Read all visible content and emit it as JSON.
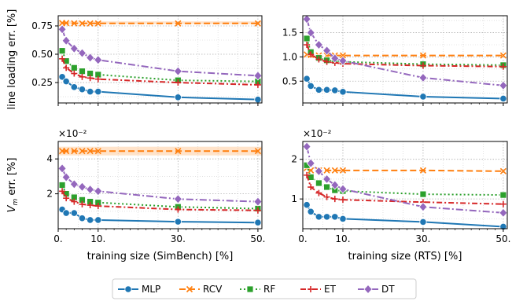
{
  "legend": [
    {
      "name": "MLP",
      "color": "#1f77b4",
      "marker": "circle",
      "dash": ""
    },
    {
      "name": "RCV",
      "color": "#ff7f0e",
      "marker": "x",
      "dash": "8 4"
    },
    {
      "name": "RF",
      "color": "#2ca02c",
      "marker": "square",
      "dash": "2 3"
    },
    {
      "name": "ET",
      "color": "#d62728",
      "marker": "plus",
      "dash": "7 3 2 3"
    },
    {
      "name": "DT",
      "color": "#9467bd",
      "marker": "diamond",
      "dash": "9 3 2 3"
    }
  ],
  "chart_data": [
    {
      "type": "line",
      "panel": "top-left",
      "ylabel": "line loading err. [%]",
      "xlabel": "",
      "xlim": [
        0,
        51
      ],
      "ylim": [
        0.07,
        0.84
      ],
      "xticks": [
        0,
        10,
        30,
        50
      ],
      "xtick_labels": [
        "",
        "",
        "",
        ""
      ],
      "yticks": [
        0.25,
        0.5,
        0.75
      ],
      "ytick_labels": [
        "0.25",
        "0.50",
        "0.75"
      ],
      "exponent": "",
      "band": {
        "series": "RCV",
        "y0": 0.765,
        "y1": 0.79
      },
      "x": [
        1,
        2,
        4,
        6,
        8,
        10,
        30,
        50
      ],
      "series": [
        {
          "name": "MLP",
          "values": [
            0.3,
            0.26,
            0.21,
            0.19,
            0.17,
            0.17,
            0.12,
            0.1
          ]
        },
        {
          "name": "RCV",
          "values": [
            0.775,
            0.775,
            0.773,
            0.772,
            0.772,
            0.772,
            0.772,
            0.772
          ]
        },
        {
          "name": "RF",
          "values": [
            0.53,
            0.44,
            0.38,
            0.35,
            0.33,
            0.32,
            0.27,
            0.26
          ]
        },
        {
          "name": "ET",
          "values": [
            0.46,
            0.38,
            0.33,
            0.3,
            0.29,
            0.28,
            0.25,
            0.23
          ]
        },
        {
          "name": "DT",
          "values": [
            0.72,
            0.62,
            0.55,
            0.51,
            0.47,
            0.45,
            0.35,
            0.31
          ]
        }
      ]
    },
    {
      "type": "line",
      "panel": "top-right",
      "ylabel": "",
      "xlabel": "",
      "xlim": [
        0,
        51
      ],
      "ylim": [
        0.05,
        1.85
      ],
      "xticks": [
        0,
        10,
        30,
        50
      ],
      "xtick_labels": [
        "",
        "",
        "",
        ""
      ],
      "yticks": [
        0.5,
        1.0,
        1.5
      ],
      "ytick_labels": [
        "0.5",
        "1.0",
        "1.5"
      ],
      "exponent": "",
      "band": null,
      "x": [
        1,
        2,
        4,
        6,
        8,
        10,
        30,
        50
      ],
      "series": [
        {
          "name": "MLP",
          "values": [
            0.55,
            0.4,
            0.32,
            0.32,
            0.31,
            0.28,
            0.18,
            0.14
          ]
        },
        {
          "name": "RCV",
          "values": [
            1.05,
            1.04,
            1.03,
            1.03,
            1.03,
            1.03,
            1.03,
            1.03
          ]
        },
        {
          "name": "RF",
          "values": [
            1.38,
            1.1,
            0.98,
            0.93,
            0.92,
            0.9,
            0.85,
            0.83
          ]
        },
        {
          "name": "ET",
          "values": [
            1.25,
            1.05,
            0.95,
            0.9,
            0.88,
            0.86,
            0.82,
            0.8
          ]
        },
        {
          "name": "DT",
          "values": [
            1.78,
            1.5,
            1.25,
            1.13,
            0.97,
            0.92,
            0.57,
            0.41
          ]
        }
      ]
    },
    {
      "type": "line",
      "panel": "bottom-left",
      "ylabel": "Vm err. [%]",
      "xlabel": "training size (SimBench) [%]",
      "xlim": [
        0,
        51
      ],
      "ylim": [
        0.0,
        0.05
      ],
      "xticks": [
        0,
        10,
        30,
        50
      ],
      "xtick_labels": [
        "0.",
        "10.",
        "30.",
        "50."
      ],
      "yticks": [
        0.02,
        0.04
      ],
      "ytick_labels": [
        "2",
        "4"
      ],
      "exponent": "×10⁻²",
      "band": {
        "series": "RCV",
        "y0": 0.042,
        "y1": 0.047
      },
      "x": [
        1,
        2,
        4,
        6,
        8,
        10,
        30,
        50
      ],
      "series": [
        {
          "name": "MLP",
          "values": [
            0.011,
            0.009,
            0.009,
            0.006,
            0.005,
            0.005,
            0.004,
            0.0035
          ]
        },
        {
          "name": "RCV",
          "values": [
            0.0445,
            0.0445,
            0.0445,
            0.0445,
            0.0445,
            0.0445,
            0.0445,
            0.0445
          ]
        },
        {
          "name": "RF",
          "values": [
            0.025,
            0.02,
            0.018,
            0.0165,
            0.0155,
            0.015,
            0.0125,
            0.0115
          ]
        },
        {
          "name": "ET",
          "values": [
            0.0215,
            0.0175,
            0.0155,
            0.014,
            0.0135,
            0.013,
            0.011,
            0.0105
          ]
        },
        {
          "name": "DT",
          "values": [
            0.0345,
            0.0295,
            0.0255,
            0.024,
            0.0225,
            0.0215,
            0.017,
            0.0155
          ]
        }
      ]
    },
    {
      "type": "line",
      "panel": "bottom-right",
      "ylabel": "",
      "xlabel": "training size (RTS) [%]",
      "xlim": [
        0,
        51
      ],
      "ylim": [
        0.0025,
        0.0245
      ],
      "xticks": [
        0,
        10,
        30,
        50
      ],
      "xtick_labels": [
        "0.",
        "10.",
        "30.",
        "50."
      ],
      "yticks": [
        0.01,
        0.02
      ],
      "ytick_labels": [
        "1",
        "2"
      ],
      "exponent": "×10⁻²",
      "band": null,
      "x": [
        1,
        2,
        4,
        6,
        8,
        10,
        30,
        50
      ],
      "series": [
        {
          "name": "MLP",
          "values": [
            0.0085,
            0.0068,
            0.0055,
            0.0055,
            0.0055,
            0.005,
            0.0042,
            0.003
          ]
        },
        {
          "name": "RCV",
          "values": [
            0.0178,
            0.0172,
            0.0172,
            0.0172,
            0.0172,
            0.0172,
            0.0172,
            0.017
          ]
        },
        {
          "name": "RF",
          "values": [
            0.0185,
            0.0155,
            0.014,
            0.013,
            0.0122,
            0.012,
            0.0112,
            0.011
          ]
        },
        {
          "name": "ET",
          "values": [
            0.016,
            0.013,
            0.0115,
            0.0105,
            0.01,
            0.0098,
            0.0092,
            0.0087
          ]
        },
        {
          "name": "DT",
          "values": [
            0.0232,
            0.019,
            0.017,
            0.015,
            0.0135,
            0.0125,
            0.008,
            0.0065
          ]
        }
      ]
    }
  ]
}
